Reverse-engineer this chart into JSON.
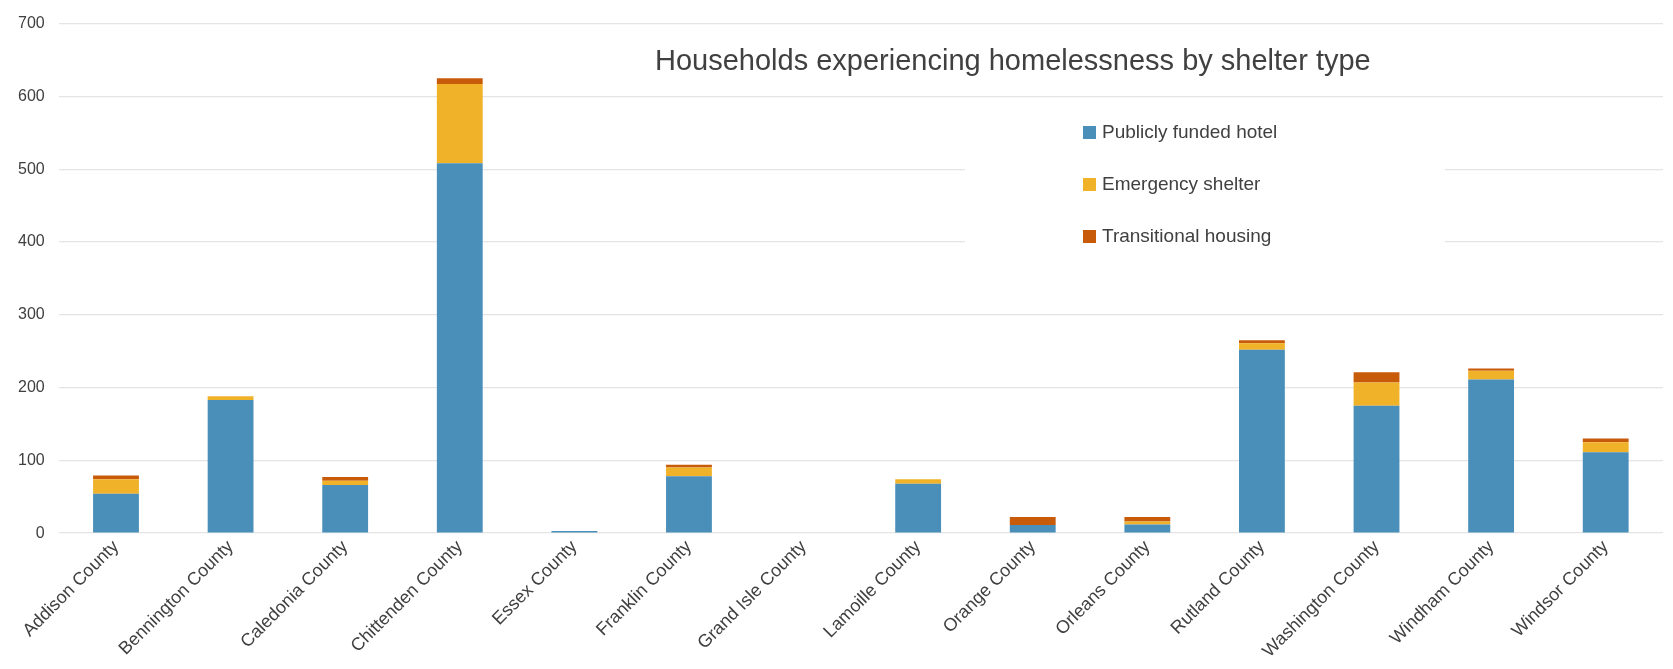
{
  "chart_data": {
    "type": "bar",
    "title": "Households experiencing homelessness by shelter type",
    "categories": [
      "Addison County",
      "Bennington County",
      "Caledonia County",
      "Chittenden County",
      "Essex County",
      "Franklin County",
      "Grand Isle County",
      "Lamoille County",
      "Orange County",
      "Orleans County",
      "Rutland County",
      "Washington County",
      "Windham County",
      "Windsor County"
    ],
    "series": [
      {
        "name": " Publicly funded hotel",
        "color": "#4a8fba",
        "values": [
          54,
          183,
          66,
          508,
          3,
          78,
          0,
          68,
          11,
          12,
          252,
          175,
          211,
          111
        ]
      },
      {
        "name": "Emergency shelter",
        "color": "#f0b229",
        "values": [
          20,
          5,
          6,
          109,
          0,
          12,
          0,
          6,
          0,
          4,
          9,
          32,
          12,
          14
        ]
      },
      {
        "name": "Transitional housing",
        "color": "#c85b0a",
        "values": [
          5,
          0,
          5,
          8,
          0,
          4,
          0,
          0,
          11,
          6,
          4,
          14,
          3,
          5
        ]
      }
    ],
    "stacked": true,
    "ylim": [
      0,
      700
    ],
    "yticks": [
      0,
      100,
      200,
      300,
      400,
      500,
      600,
      700
    ],
    "grid": "y",
    "legend": "top right"
  }
}
